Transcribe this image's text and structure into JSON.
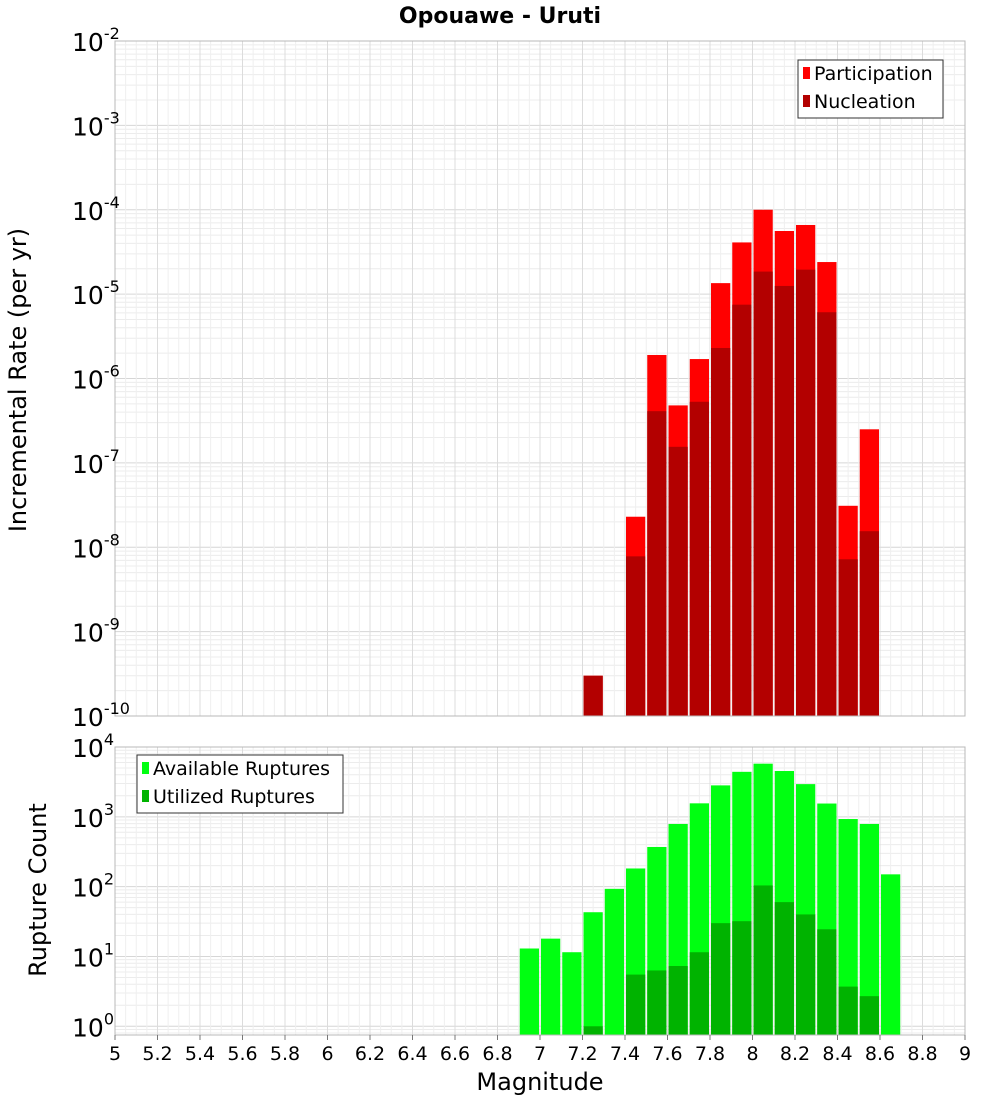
{
  "chart_data": [
    {
      "type": "bar",
      "title": "Opouawe - Uruti",
      "ylabel": "Incremental Rate (per yr)",
      "y_scale": "log",
      "ylim": [
        1e-10,
        0.01
      ],
      "y_tick_exponents": [
        "-10",
        "-9",
        "-8",
        "-7",
        "-6",
        "-5",
        "-4",
        "-3",
        "-2"
      ],
      "xlim": [
        5,
        9
      ],
      "grid": true,
      "legend_position": "top-right",
      "series": [
        {
          "name": "Participation",
          "color": "#ff0000",
          "x": [
            7.25,
            7.45,
            7.55,
            7.65,
            7.75,
            7.85,
            7.95,
            8.05,
            8.15,
            8.25,
            8.35,
            8.45,
            8.55
          ],
          "values": [
            3e-10,
            2.3e-08,
            1.9e-06,
            4.8e-07,
            1.7e-06,
            1.35e-05,
            4.1e-05,
            0.0001,
            5.6e-05,
            6.6e-05,
            2.4e-05,
            3.1e-08,
            2.5e-07
          ]
        },
        {
          "name": "Nucleation",
          "color": "#b30000",
          "x": [
            7.25,
            7.45,
            7.55,
            7.65,
            7.75,
            7.85,
            7.95,
            8.05,
            8.15,
            8.25,
            8.35,
            8.45,
            8.55
          ],
          "values": [
            3e-10,
            7.8e-09,
            4.1e-07,
            1.55e-07,
            5.3e-07,
            2.3e-06,
            7.5e-06,
            1.85e-05,
            1.25e-05,
            1.95e-05,
            6.1e-06,
            7.2e-09,
            1.55e-08
          ]
        }
      ]
    },
    {
      "type": "bar",
      "ylabel": "Rupture Count",
      "xlabel": "Magnitude",
      "y_scale": "log",
      "ylim": [
        0.75,
        10000
      ],
      "y_tick_exponents": [
        "0",
        "1",
        "2",
        "3",
        "4"
      ],
      "xlim": [
        5,
        9
      ],
      "x_ticks": [
        "5",
        "5.2",
        "5.4",
        "5.6",
        "5.8",
        "6",
        "6.2",
        "6.4",
        "6.6",
        "6.8",
        "7",
        "7.2",
        "7.4",
        "7.6",
        "7.8",
        "8",
        "8.2",
        "8.4",
        "8.6",
        "8.8",
        "9"
      ],
      "grid": true,
      "legend_position": "top-left",
      "series": [
        {
          "name": "Available Ruptures",
          "color": "#00ff11",
          "x": [
            6.95,
            7.05,
            7.15,
            7.25,
            7.35,
            7.45,
            7.55,
            7.65,
            7.75,
            7.85,
            7.95,
            8.05,
            8.15,
            8.25,
            8.35,
            8.45,
            8.55,
            8.65
          ],
          "values": [
            13,
            18,
            11.5,
            43,
            93,
            182,
            370,
            790,
            1560,
            2820,
            4410,
            5770,
            4530,
            2940,
            1550,
            930,
            790,
            150
          ]
        },
        {
          "name": "Utilized Ruptures",
          "color": "#00b300",
          "x": [
            7.25,
            7.45,
            7.55,
            7.65,
            7.75,
            7.85,
            7.95,
            8.05,
            8.15,
            8.25,
            8.35,
            8.45,
            8.55
          ],
          "values": [
            1,
            5.5,
            6.3,
            7.3,
            11.5,
            30,
            32,
            104,
            60,
            40,
            24.5,
            3.7,
            2.7
          ]
        }
      ]
    }
  ]
}
